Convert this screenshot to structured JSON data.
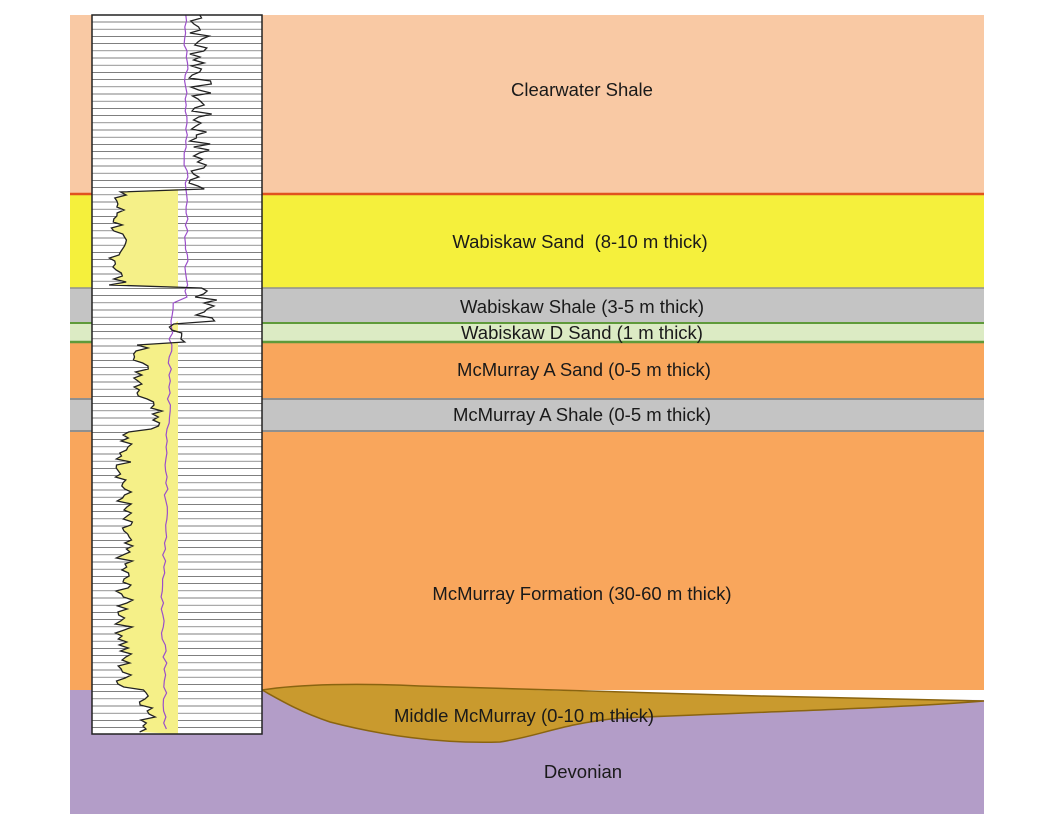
{
  "colors": {
    "clearwater_shale": "#f9c9a4",
    "contact_line": "#e0531f",
    "wabiskaw_sand": "#f5f03c",
    "shale_gray": "#c4c4c4",
    "shale_edge": "#8f8f8f",
    "wabiskaw_d_sand": "#dcebc4",
    "wabiskaw_d_edge": "#5f9a3a",
    "mcmurray": "#f9a65c",
    "middle_mcmurray": "#c99a2e",
    "middle_mcmurray_edge": "#8a6410",
    "devonian": "#b39dc8",
    "log_fill": "#f5f088",
    "gamma_curve": "#222222",
    "secondary_curve": "#9b4fc9"
  },
  "layers": {
    "clearwater_shale": "Clearwater Shale",
    "wabiskaw_sand": "Wabiskaw Sand  (8-10 m thick)",
    "wabiskaw_shale": "Wabiskaw Shale (3-5 m thick)",
    "wabiskaw_d_sand": "Wabiskaw D Sand (1 m thick)",
    "mcmurray_a_sand": "McMurray A Sand (0-5 m thick)",
    "mcmurray_a_shale": "McMurray A Shale (0-5 m thick)",
    "mcmurray_formation": "McMurray Formation (30-60 m thick)",
    "middle_mcmurray": "Middle McMurray (0-10 m thick)",
    "devonian": "Devonian"
  },
  "well_log": {
    "icon": "gamma-ray-log-track"
  }
}
